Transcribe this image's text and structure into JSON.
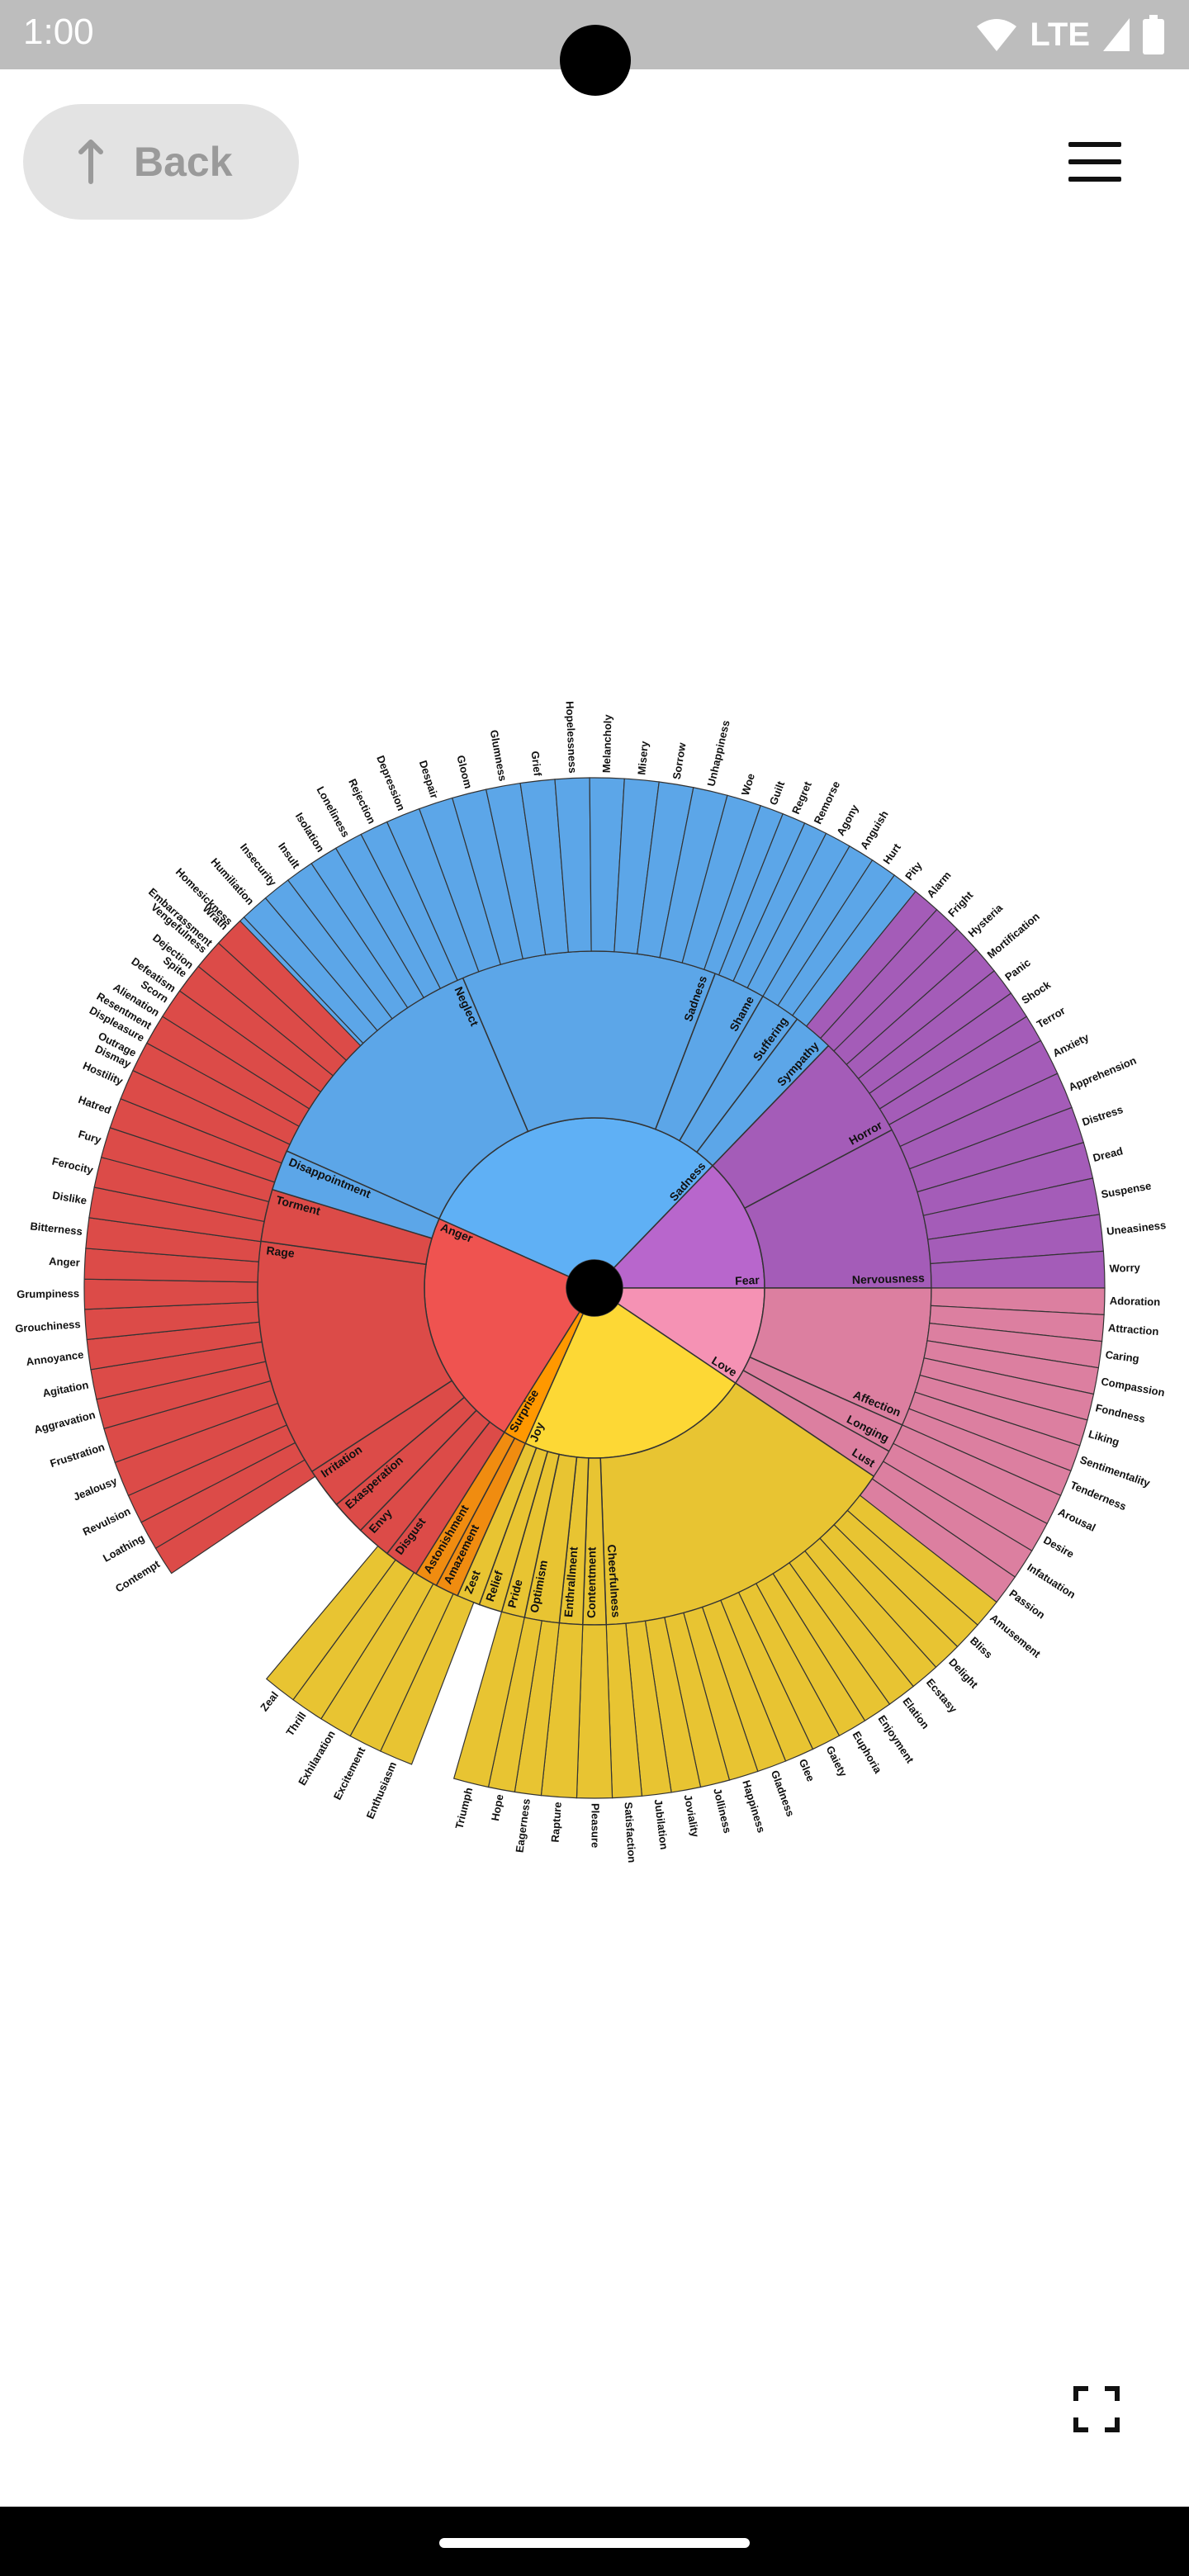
{
  "status_bar": {
    "time": "1:00",
    "network": "LTE"
  },
  "toolbar": {
    "back_label": "Back"
  },
  "colors": {
    "sadness": "#5b9bd5",
    "fear": "#a45cb8",
    "love": "#dc7fa0",
    "joy": "#e8c432",
    "surprise": "#f08c10",
    "anger": "#dc4b48"
  },
  "chart_data": {
    "type": "sunburst",
    "center": [
      {
        "name": "Sadness",
        "color": "#5fb0f5"
      },
      {
        "name": "Fear",
        "color": "#b866cc"
      },
      {
        "name": "Love",
        "color": "#f592b4"
      },
      {
        "name": "Joy",
        "color": "#fdd835"
      },
      {
        "name": "Surprise",
        "color": "#ff9800"
      },
      {
        "name": "Anger",
        "color": "#ef5350"
      }
    ],
    "secondary": [
      {
        "name": "Neglect",
        "color": "#5ca6e8",
        "leaves": [
          "Dismay",
          "Displeasure",
          "Alienation",
          "Defeatism",
          "Dejection",
          "Embarrassment",
          "Homesickness",
          "Humiliation",
          "Insecurity",
          "Insult",
          "Isolation",
          "Loneliness",
          "Rejection"
        ]
      },
      {
        "name": "Sadness",
        "color": "#5ca6e8",
        "leaves": [
          "Depression",
          "Despair",
          "Gloom",
          "Glumness",
          "Grief",
          "Hopelessness",
          "Melancholy",
          "Misery",
          "Sorrow",
          "Unhappiness",
          "Woe"
        ]
      },
      {
        "name": "Shame",
        "color": "#5ca6e8",
        "leaves": [
          "Guilt",
          "Regret",
          "Remorse"
        ]
      },
      {
        "name": "Suffering",
        "color": "#5ca6e8",
        "leaves": [
          "Agony",
          "Anguish",
          "Hurt"
        ]
      },
      {
        "name": "Sympathy",
        "color": "#5ca6e8",
        "leaves": [
          "Pity"
        ]
      },
      {
        "name": "Horror",
        "color": "#a45cb8",
        "leaves": [
          "Alarm",
          "Fright",
          "Hysteria",
          "Mortification",
          "Panic",
          "Shock",
          "Terror"
        ]
      },
      {
        "name": "Nervousness",
        "color": "#a45cb8",
        "leaves": [
          "Anxiety",
          "Apprehension",
          "Distress",
          "Dread",
          "Suspense",
          "Uneasiness",
          "Worry"
        ]
      },
      {
        "name": "Affection",
        "color": "#dc7fa0",
        "leaves": [
          "Adoration",
          "Attraction",
          "Caring",
          "Compassion",
          "Fondness",
          "Liking",
          "Sentimentality",
          "Tenderness"
        ]
      },
      {
        "name": "Longing",
        "color": "#dc7fa0",
        "leaves": []
      },
      {
        "name": "Lust",
        "color": "#dc7fa0",
        "leaves": [
          "Arousal",
          "Desire",
          "Infatuation",
          "Passion"
        ]
      },
      {
        "name": "Cheerfulness",
        "color": "#e8c432",
        "leaves": [
          "Amusement",
          "Bliss",
          "Delight",
          "Ecstasy",
          "Elation",
          "Enjoyment",
          "Euphoria",
          "Gaiety",
          "Glee",
          "Gladness",
          "Happiness",
          "Jolliness",
          "Joviality",
          "Jubilation",
          "Satisfaction"
        ]
      },
      {
        "name": "Contentment",
        "color": "#e8c432",
        "leaves": [
          "Pleasure"
        ]
      },
      {
        "name": "Enthrallment",
        "color": "#e8c432",
        "leaves": [
          "Rapture"
        ]
      },
      {
        "name": "Optimism",
        "color": "#e8c432",
        "leaves": [
          "Eagerness",
          "Hope"
        ]
      },
      {
        "name": "Pride",
        "color": "#e8c432",
        "leaves": [
          "Triumph"
        ]
      },
      {
        "name": "Relief",
        "color": "#e8c432",
        "leaves": []
      },
      {
        "name": "Zest",
        "color": "#e8c432",
        "leaves": [
          "Enthusiasm",
          "Excitement",
          "Exhilaration",
          "Thrill",
          "Zeal"
        ]
      },
      {
        "name": "Amazement",
        "color": "#f08c10",
        "leaves": []
      },
      {
        "name": "Astonishment",
        "color": "#f08c10",
        "leaves": []
      },
      {
        "name": "Disgust",
        "color": "#dc4b48",
        "leaves": [
          "Contempt",
          "Loathing",
          "Revulsion"
        ]
      },
      {
        "name": "Envy",
        "color": "#dc4b48",
        "leaves": [
          "Jealousy"
        ]
      },
      {
        "name": "Exasperation",
        "color": "#dc4b48",
        "leaves": [
          "Frustration"
        ]
      },
      {
        "name": "Irritation",
        "color": "#dc4b48",
        "leaves": [
          "Aggravation",
          "Agitation",
          "Annoyance",
          "Grouchiness",
          "Grumpiness"
        ]
      },
      {
        "name": "Rage",
        "color": "#dc4b48",
        "leaves": [
          "Anger",
          "Bitterness",
          "Dislike",
          "Ferocity",
          "Fury",
          "Hatred",
          "Hostility",
          "Outrage",
          "Resentment",
          "Scorn",
          "Spite",
          "Vengefulness",
          "Wrath"
        ]
      },
      {
        "name": "Torment",
        "color": "#dc4b48",
        "leaves": []
      },
      {
        "name": "Disappointment",
        "color": "#5ca6e8",
        "leaves": []
      }
    ]
  }
}
